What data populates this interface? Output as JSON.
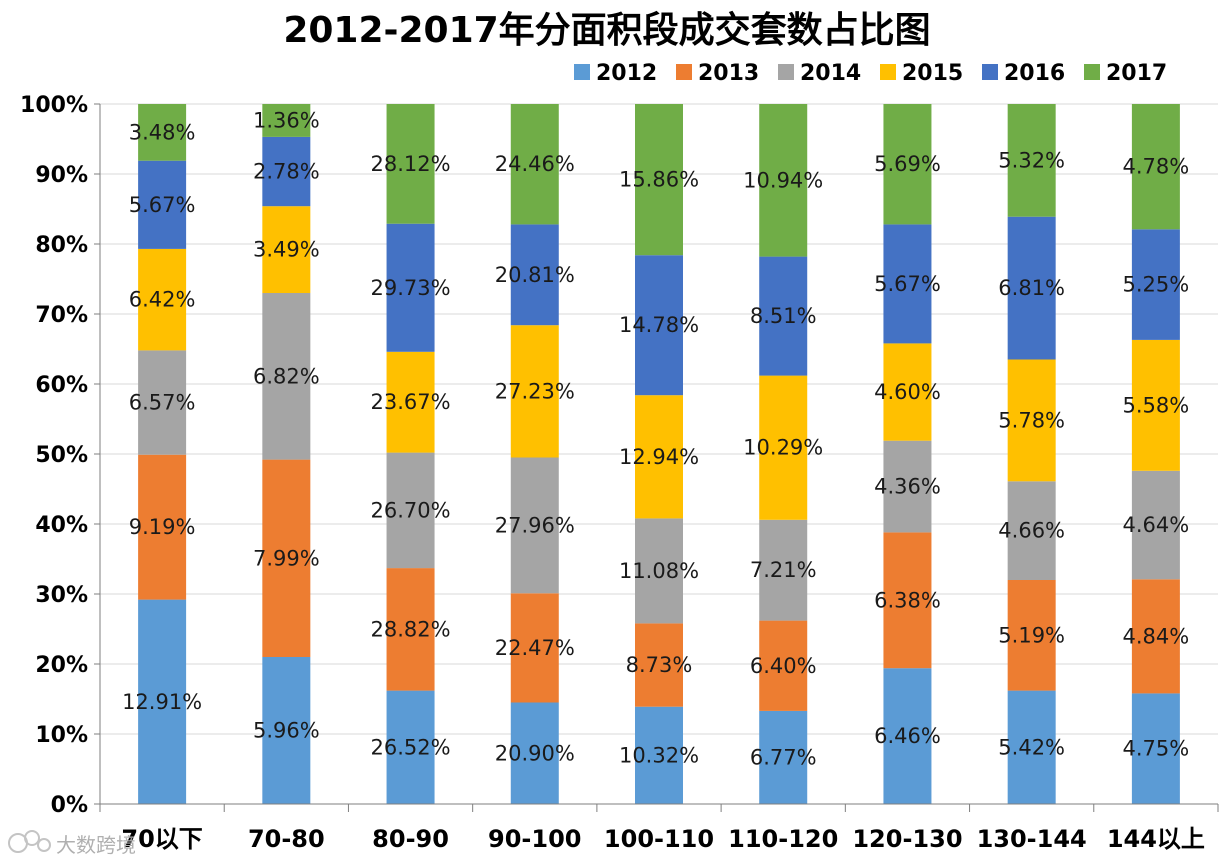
{
  "chart_data": {
    "type": "bar",
    "stacked": true,
    "normalized": true,
    "title": "2012-2017年分面积段成交套数占比图",
    "xlabel": "",
    "ylabel": "",
    "ylim": [
      0,
      100
    ],
    "yticks": [
      "0%",
      "10%",
      "20%",
      "30%",
      "40%",
      "50%",
      "60%",
      "70%",
      "80%",
      "90%",
      "100%"
    ],
    "legend_position": "top",
    "grid": true,
    "categories": [
      "70以下",
      "70-80",
      "80-90",
      "90-100",
      "100-110",
      "110-120",
      "120-130",
      "130-144",
      "144以上"
    ],
    "series": [
      {
        "name": "2012",
        "color": "#5B9BD5",
        "heights": [
          29.2,
          21.0,
          16.2,
          14.5,
          13.9,
          13.3,
          19.4,
          16.2,
          15.8
        ],
        "labels": [
          "12.91%",
          "5.96%",
          "26.52%",
          "20.90%",
          "10.32%",
          "6.77%",
          "6.46%",
          "5.42%",
          "4.75%"
        ]
      },
      {
        "name": "2013",
        "color": "#ED7D31",
        "heights": [
          20.7,
          28.2,
          17.5,
          15.6,
          11.9,
          12.9,
          19.4,
          15.8,
          16.3
        ],
        "labels": [
          "9.19%",
          "7.99%",
          "28.82%",
          "22.47%",
          "8.73%",
          "6.40%",
          "6.38%",
          "5.19%",
          "4.84%"
        ]
      },
      {
        "name": "2014",
        "color": "#A5A5A5",
        "heights": [
          14.9,
          23.8,
          16.5,
          19.4,
          15.0,
          14.4,
          13.1,
          14.1,
          15.5
        ],
        "labels": [
          "6.57%",
          "6.82%",
          "26.70%",
          "27.96%",
          "11.08%",
          "7.21%",
          "4.36%",
          "4.66%",
          "4.64%"
        ]
      },
      {
        "name": "2015",
        "color": "#FFC000",
        "heights": [
          14.5,
          12.4,
          14.4,
          18.9,
          17.6,
          20.6,
          13.9,
          17.4,
          18.7
        ],
        "labels": [
          "6.42%",
          "3.49%",
          "23.67%",
          "27.23%",
          "12.94%",
          "10.29%",
          "4.60%",
          "5.78%",
          "5.58%"
        ]
      },
      {
        "name": "2016",
        "color": "#4472C4",
        "heights": [
          12.6,
          9.9,
          18.3,
          14.4,
          20.0,
          17.0,
          17.0,
          20.4,
          15.8
        ],
        "labels": [
          "5.67%",
          "2.78%",
          "29.73%",
          "20.81%",
          "14.78%",
          "8.51%",
          "5.67%",
          "6.81%",
          "5.25%"
        ]
      },
      {
        "name": "2017",
        "color": "#70AD47",
        "heights": [
          8.1,
          4.7,
          17.1,
          17.2,
          21.6,
          21.8,
          17.2,
          16.1,
          17.9
        ],
        "labels": [
          "3.48%",
          "1.36%",
          "28.12%",
          "24.46%",
          "15.86%",
          "10.94%",
          "5.69%",
          "5.32%",
          "4.78%"
        ]
      }
    ]
  },
  "watermark": "大数跨境"
}
